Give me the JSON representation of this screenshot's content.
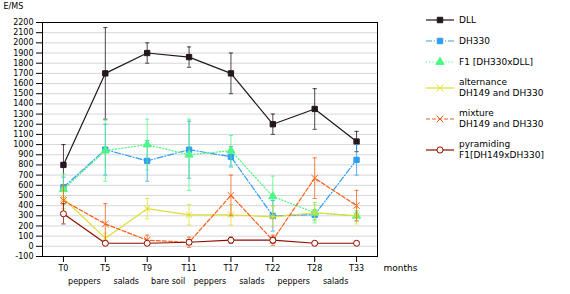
{
  "chart_data": {
    "type": "line",
    "categories": [
      "T0",
      "T5",
      "T9",
      "T11",
      "T17",
      "T22",
      "T28",
      "T33"
    ],
    "xlabel": "months",
    "ylabel": "E/MS",
    "annotations": [
      "peppers",
      "salads",
      "bare soil",
      "peppers",
      "salads",
      "peppers",
      "salads"
    ],
    "series": [
      {
        "name": "DLL",
        "values": [
          800,
          1700,
          1900,
          1860,
          1700,
          1200,
          1350,
          1030
        ],
        "errors": [
          200,
          450,
          100,
          100,
          200,
          100,
          200,
          100
        ],
        "marker": "square",
        "line_style": "solid"
      },
      {
        "name": "DH330",
        "values": [
          580,
          950,
          840,
          950,
          880,
          300,
          310,
          850
        ],
        "errors": [
          100,
          250,
          200,
          280,
          100,
          150,
          50,
          150
        ],
        "marker": "square",
        "line_style": "dashdot"
      },
      {
        "name": "F1 [DH330xDLL]",
        "values": [
          560,
          940,
          1000,
          900,
          940,
          490,
          330,
          300
        ],
        "errors": [
          150,
          300,
          250,
          350,
          150,
          200,
          100,
          50
        ],
        "marker": "triangle",
        "line_style": "dotted"
      },
      {
        "name": "alternance\nDH149 and DH330",
        "values": [
          470,
          80,
          370,
          310,
          310,
          290,
          330,
          300
        ],
        "errors": [
          100,
          50,
          100,
          100,
          100,
          100,
          80,
          80
        ],
        "marker": "x",
        "line_style": "solid"
      },
      {
        "name": "mixture\nDH149 and DH330",
        "values": [
          450,
          220,
          60,
          40,
          500,
          60,
          670,
          400
        ],
        "errors": [
          150,
          200,
          50,
          50,
          200,
          50,
          200,
          150
        ],
        "marker": "x",
        "line_style": "dashed"
      },
      {
        "name": "pyramiding\nF1[DH149xDH330]",
        "values": [
          320,
          30,
          30,
          40,
          60,
          60,
          30,
          30
        ],
        "errors": [
          100,
          20,
          20,
          20,
          30,
          30,
          20,
          20
        ],
        "marker": "circle",
        "line_style": "solid"
      }
    ],
    "ylim": [
      -100,
      2200
    ],
    "yticks": [
      -100,
      0,
      100,
      200,
      300,
      400,
      500,
      600,
      700,
      800,
      900,
      1000,
      1100,
      1200,
      1300,
      1400,
      1500,
      1600,
      1700,
      1800,
      1900,
      2000,
      2100,
      2200
    ],
    "grid": true,
    "legend": "right"
  }
}
